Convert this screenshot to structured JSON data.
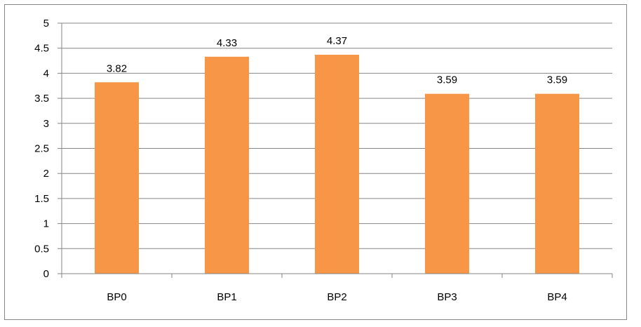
{
  "chart_data": {
    "type": "bar",
    "categories": [
      "BP0",
      "BP1",
      "BP2",
      "BP3",
      "BP4"
    ],
    "values": [
      3.82,
      4.33,
      4.37,
      3.59,
      3.59
    ],
    "data_labels": [
      "3.82",
      "4.33",
      "4.37",
      "3.59",
      "3.59"
    ],
    "title": "",
    "xlabel": "",
    "ylabel": "",
    "ylim": [
      0,
      5
    ],
    "y_ticks": [
      "0",
      "0.5",
      "1",
      "1.5",
      "2",
      "2.5",
      "3",
      "3.5",
      "4",
      "4.5",
      "5"
    ],
    "grid": true,
    "legend": "none",
    "colors": {
      "bar": "#F79646",
      "grid": "#868686",
      "frame": "#868686"
    }
  }
}
